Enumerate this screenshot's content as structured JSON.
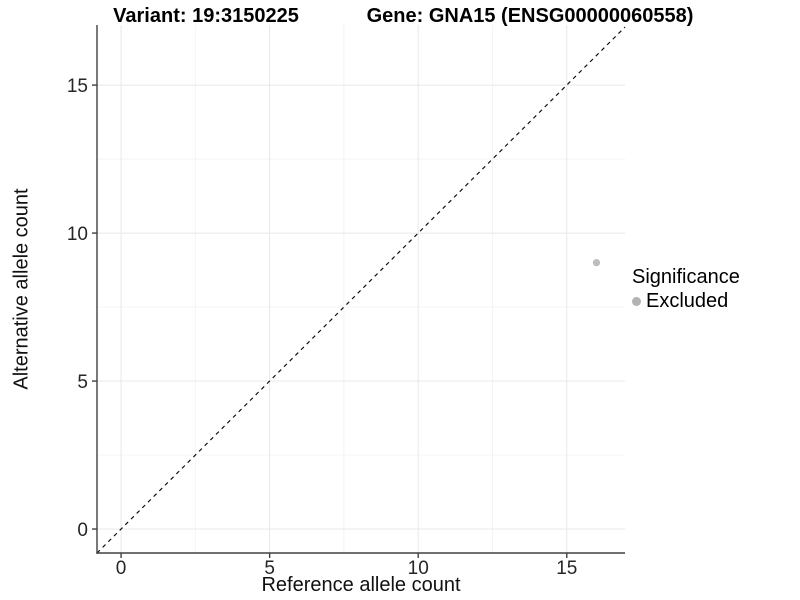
{
  "chart_data": {
    "type": "scatter",
    "title_left": "Variant: 19:3150225",
    "title_right": "Gene: GNA15 (ENSG00000060558)",
    "xlabel": "Reference allele count",
    "ylabel": "Alternative allele count",
    "xlim": [
      -0.81,
      16.96
    ],
    "ylim": [
      -0.81,
      17.03
    ],
    "xticks": [
      0,
      5,
      10,
      15
    ],
    "yticks": [
      0,
      5,
      10,
      15
    ],
    "x_minor": [
      2.5,
      7.5,
      12.5,
      17.5
    ],
    "y_minor": [
      2.5,
      7.5,
      12.5,
      17.5
    ],
    "grid": "major+minor",
    "points": [
      {
        "x": 16,
        "y": 9,
        "series": "Excluded"
      }
    ],
    "reference_line": {
      "kind": "identity",
      "equation": "y = x",
      "style": "dashed"
    },
    "legend": {
      "title": "Significance",
      "position": "right",
      "items": [
        {
          "label": "Excluded",
          "color": "#b3b3b3"
        }
      ]
    }
  },
  "colors": {
    "background": "#ffffff",
    "grid_major": "#e8e8e8",
    "grid_minor": "#f4f4f4",
    "axis": "#404040",
    "tick_text": "#262626",
    "dashed_line": "#111111",
    "point": "#bdbdbd"
  }
}
